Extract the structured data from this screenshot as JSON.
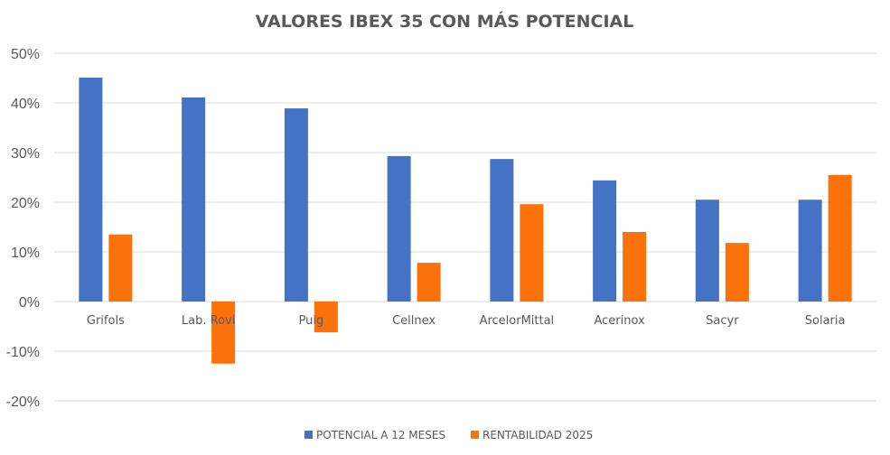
{
  "chart_data": {
    "type": "bar",
    "title": "VALORES IBEX 35 CON MÁS POTENCIAL",
    "xlabel": "",
    "ylabel": "",
    "ylim": [
      -20,
      50
    ],
    "yticks": [
      50,
      40,
      30,
      20,
      10,
      0,
      -10,
      -20
    ],
    "ytick_labels": [
      "50%",
      "40%",
      "30%",
      "20%",
      "10%",
      "0%",
      "-10%",
      "-20%"
    ],
    "grid": true,
    "legend_position": "bottom",
    "categories": [
      "Grifols",
      "Lab. Rovi",
      "Puig",
      "Cellnex",
      "ArcelorMittal",
      "Acerinox",
      "Sacyr",
      "Solaria"
    ],
    "series": [
      {
        "name": "POTENCIAL A 12 MESES",
        "color": "#4472C4",
        "values": [
          45.1,
          41.1,
          38.9,
          29.3,
          28.7,
          24.4,
          20.5,
          20.5
        ]
      },
      {
        "name": "RENTABILIDAD 2025",
        "color": "#FA7209",
        "values": [
          13.5,
          -12.5,
          -6.2,
          7.8,
          19.6,
          14.0,
          11.8,
          25.5
        ]
      }
    ]
  }
}
